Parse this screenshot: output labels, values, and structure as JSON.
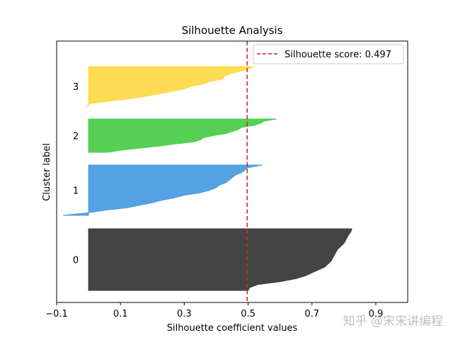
{
  "chart_data": {
    "type": "area",
    "title": "Silhouette Analysis",
    "xlabel": "Silhouette coefficient values",
    "ylabel": "Cluster label",
    "xlim": [
      -0.1,
      1.0
    ],
    "xticks": [
      -0.1,
      0.1,
      0.3,
      0.5,
      0.7,
      0.9
    ],
    "xtick_labels": [
      "−0.1",
      "0.1",
      "0.3",
      "0.5",
      "0.7",
      "0.9"
    ],
    "grid": false,
    "legend_position": "top-right",
    "silhouette_score": 0.497,
    "reference_line": {
      "label": "Silhouette score: 0.497",
      "x": 0.497,
      "style": "dashed",
      "color": "#d62728"
    },
    "clusters": [
      {
        "label": "0",
        "color": "#3a3a3a",
        "values_sorted_desc": [
          0.825,
          0.822,
          0.815,
          0.81,
          0.805,
          0.8,
          0.79,
          0.78,
          0.775,
          0.77,
          0.765,
          0.76,
          0.75,
          0.74,
          0.72,
          0.7,
          0.68,
          0.65,
          0.6,
          0.53,
          0.505,
          0.5
        ]
      },
      {
        "label": "1",
        "color": "#4c9de0",
        "values_sorted_desc": [
          0.545,
          0.5,
          0.49,
          0.48,
          0.46,
          0.45,
          0.44,
          0.43,
          0.41,
          0.4,
          0.38,
          0.35,
          0.3,
          0.27,
          0.23,
          0.2,
          0.16,
          0.12,
          0.05,
          0.0,
          -0.08
        ]
      },
      {
        "label": "2",
        "color": "#4cce4c",
        "values_sorted_desc": [
          0.59,
          0.55,
          0.54,
          0.52,
          0.48,
          0.47,
          0.45,
          0.43,
          0.39,
          0.36,
          0.35,
          0.33,
          0.27,
          0.22,
          0.16,
          0.1,
          0.06
        ]
      },
      {
        "label": "3",
        "color": "#fdd94a",
        "values_sorted_desc": [
          0.515,
          0.5,
          0.47,
          0.44,
          0.425,
          0.42,
          0.38,
          0.36,
          0.32,
          0.3,
          0.26,
          0.22,
          0.18,
          0.13,
          0.06,
          0.0,
          -0.005
        ]
      }
    ]
  },
  "watermark": "知乎 @宋宋讲编程"
}
